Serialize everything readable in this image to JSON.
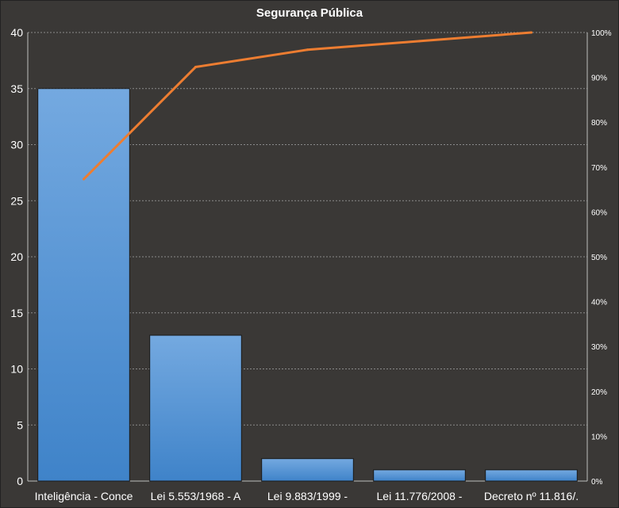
{
  "chart_data": {
    "type": "bar",
    "title": "Segurança Pública",
    "categories": [
      "Inteligência - Conce",
      "Lei 5.553/1968 - A",
      "Lei 9.883/1999 -",
      "Lei 11.776/2008 -",
      "Decreto nº 11.816/."
    ],
    "series": [
      {
        "type": "bar",
        "axis": "left",
        "values": [
          35,
          13,
          2,
          1,
          1
        ]
      },
      {
        "type": "line",
        "axis": "right",
        "values": [
          0.6731,
          0.9231,
          0.9615,
          0.9808,
          1.0
        ]
      }
    ],
    "y_left": {
      "lim": [
        0,
        40
      ],
      "ticks": [
        "0",
        "5",
        "10",
        "15",
        "20",
        "25",
        "30",
        "35",
        "40"
      ]
    },
    "y_right": {
      "lim": [
        0,
        1
      ],
      "ticks": [
        "0%",
        "10%",
        "20%",
        "30%",
        "40%",
        "50%",
        "60%",
        "70%",
        "80%",
        "90%",
        "100%"
      ]
    },
    "grid": true,
    "legend": "none",
    "colors": {
      "background": "#3a3836",
      "bar_top": "#74a9e0",
      "bar_bottom": "#3f83c9",
      "line": "#ed7d31",
      "grid": "#8a8a8a",
      "text": "#ffffff"
    }
  }
}
